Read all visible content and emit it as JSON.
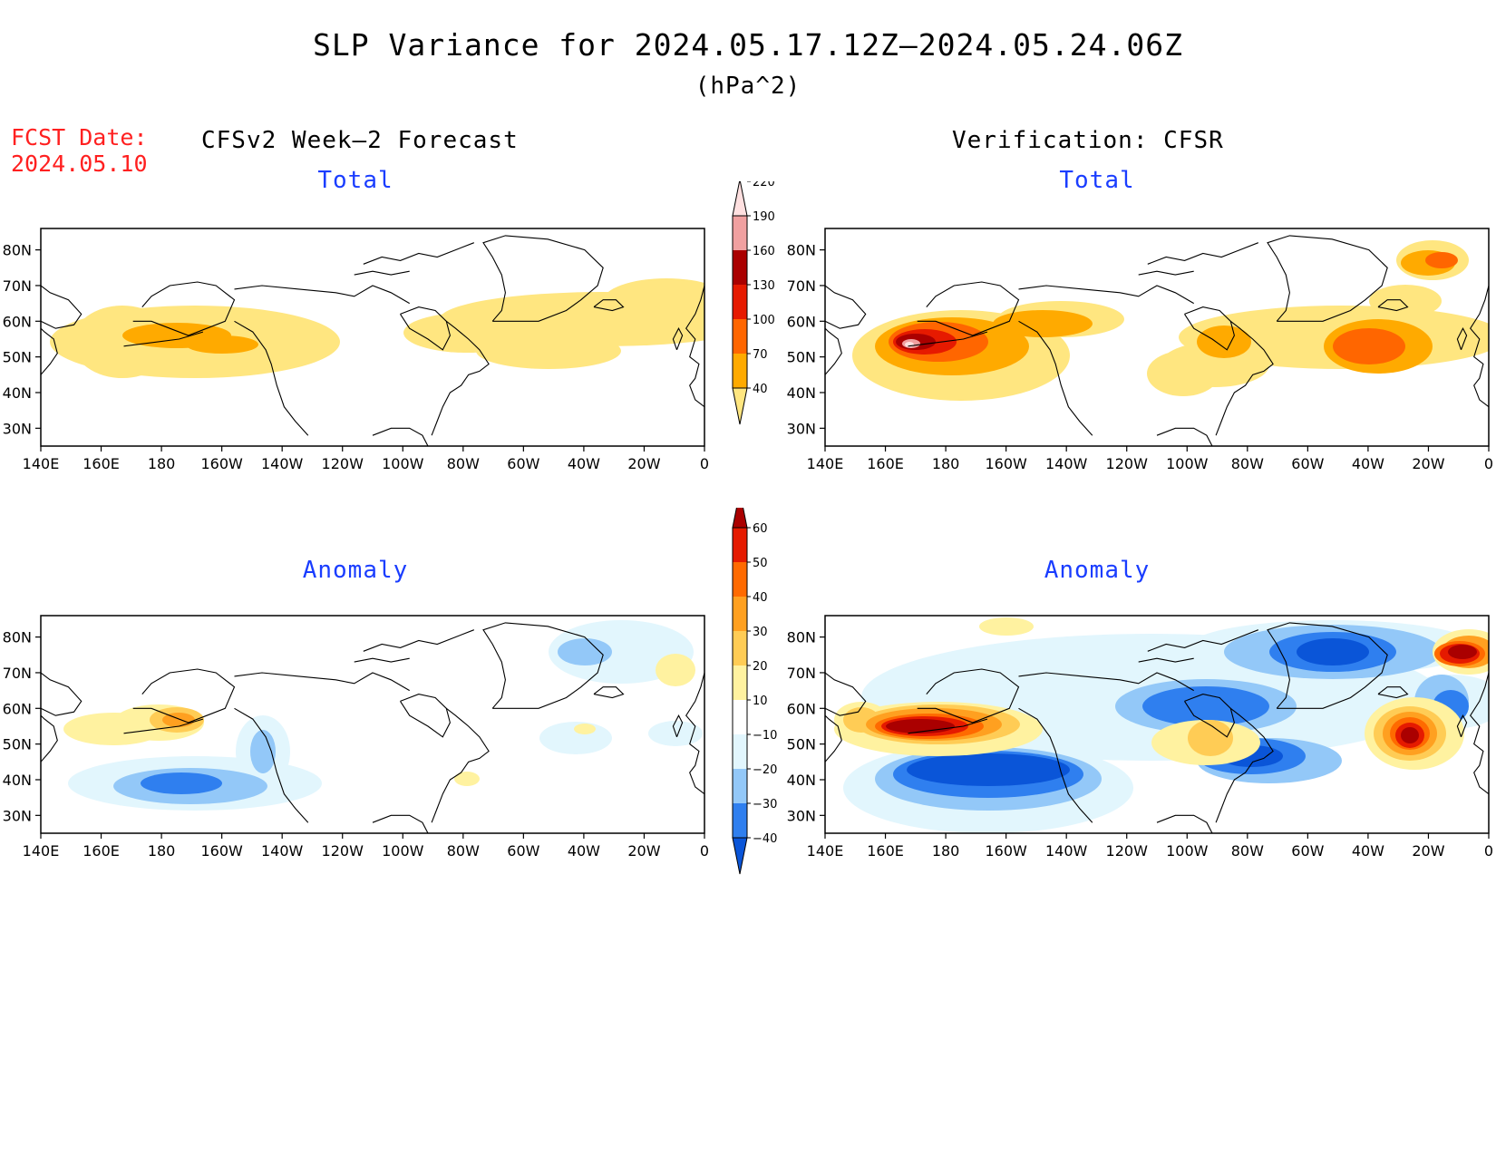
{
  "title": "SLP Variance for 2024.05.17.12Z—2024.05.24.06Z",
  "units": "(hPa^2)",
  "fcst_date": {
    "label": "FCST Date:",
    "value": "2024.05.10"
  },
  "left_header": "CFSv2 Week—2 Forecast",
  "right_header": "Verification: CFSR",
  "subtitles": {
    "total": "Total",
    "anomaly": "Anomaly"
  },
  "lat_labels": [
    "80N",
    "70N",
    "60N",
    "50N",
    "40N",
    "30N"
  ],
  "lon_labels": [
    "140E",
    "160E",
    "180",
    "160W",
    "140W",
    "120W",
    "100W",
    "80W",
    "60W",
    "40W",
    "20W",
    "0"
  ],
  "total_colorbar": {
    "levels": [
      "40",
      "70",
      "100",
      "130",
      "160",
      "190",
      "220"
    ],
    "colors": [
      "#ffe680",
      "#ffaa00",
      "#ff6600",
      "#e61a00",
      "#aa0000",
      "#f0a0a0",
      "#ffe0e0"
    ]
  },
  "anomaly_colorbar": {
    "levels": [
      "−40",
      "−30",
      "−20",
      "−10",
      "10",
      "20",
      "30",
      "40",
      "50",
      "60"
    ],
    "colors": [
      "#0a55d8",
      "#2f7fef",
      "#93c8f8",
      "#e2f6fd",
      "#ffffff",
      "#fff2a0",
      "#ffcc55",
      "#ffa020",
      "#ff6a00",
      "#e51a00",
      "#aa0000"
    ]
  },
  "palette": {
    "t40": "#ffe680",
    "t70": "#ffaa00",
    "t100": "#ff6600",
    "t130": "#e61a00",
    "t160": "#aa0000",
    "t190": "#f0a0a0",
    "t220": "#ffe0e0",
    "a10p": "#fff2a0",
    "a20p": "#ffcc55",
    "a30p": "#ffa020",
    "a40p": "#ff6a00",
    "a50p": "#e51a00",
    "a60p": "#aa0000",
    "a10n": "#e2f6fd",
    "a20n": "#93c8f8",
    "a30n": "#2f7fef",
    "a40n": "#0a55d8"
  }
}
